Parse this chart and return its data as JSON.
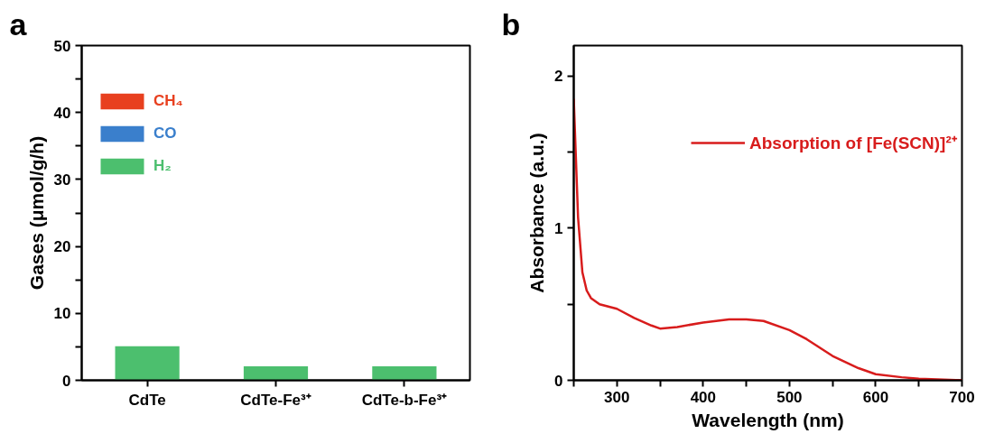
{
  "chart_data": [
    {
      "type": "bar",
      "title": "a",
      "ylabel": "Gases (μmol/g/h)",
      "categories": [
        "CdTe",
        "CdTe-Fe³⁺",
        "CdTe-b-Fe³⁺"
      ],
      "series": [
        {
          "name": "H₂",
          "color": "#4cbf6e",
          "values": [
            5.1,
            2.1,
            2.1
          ]
        },
        {
          "name": "CO",
          "color": "#3a7fcc",
          "values": [
            0,
            0,
            0
          ]
        },
        {
          "name": "CH₄",
          "color": "#e8401f",
          "values": [
            0,
            0,
            0
          ]
        }
      ],
      "ylim": [
        0,
        50
      ],
      "yticks": [
        0,
        {
          "value": 5,
          "label": null
        },
        10,
        {
          "value": 15,
          "label": null
        },
        20,
        {
          "value": 25,
          "label": null
        },
        30,
        {
          "value": 35,
          "label": null
        },
        40,
        {
          "value": 45,
          "label": null
        },
        50
      ],
      "legend": "top left",
      "grid": false
    },
    {
      "type": "line",
      "title": "b",
      "xlabel": "Wavelength (nm)",
      "ylabel": "Absorbance (a.u.)",
      "x": [
        250,
        255,
        260,
        265,
        270,
        280,
        300,
        320,
        340,
        350,
        370,
        400,
        430,
        450,
        470,
        500,
        520,
        550,
        580,
        600,
        630,
        650,
        700
      ],
      "series": [
        {
          "name": "Absorption of [Fe(SCN)]²⁺",
          "color": "#d81c1c",
          "values": [
            1.85,
            1.07,
            0.71,
            0.59,
            0.54,
            0.5,
            0.47,
            0.41,
            0.36,
            0.34,
            0.35,
            0.38,
            0.4,
            0.4,
            0.39,
            0.33,
            0.27,
            0.16,
            0.08,
            0.04,
            0.02,
            0.01,
            0
          ]
        }
      ],
      "xlim": [
        250,
        700
      ],
      "ylim": [
        0,
        2.2
      ],
      "xticks": [
        {
          "value": 250,
          "label": null
        },
        300,
        {
          "value": 350,
          "label": null
        },
        400,
        {
          "value": 450,
          "label": null
        },
        500,
        {
          "value": 550,
          "label": null
        },
        600,
        {
          "value": 650,
          "label": null
        },
        700
      ],
      "yticks": [
        0,
        {
          "value": 0.5,
          "label": null
        },
        1,
        {
          "value": 1.5,
          "label": null
        },
        2
      ],
      "legend": "top right",
      "grid": false,
      "line_style": "solid",
      "marker": "none"
    }
  ]
}
